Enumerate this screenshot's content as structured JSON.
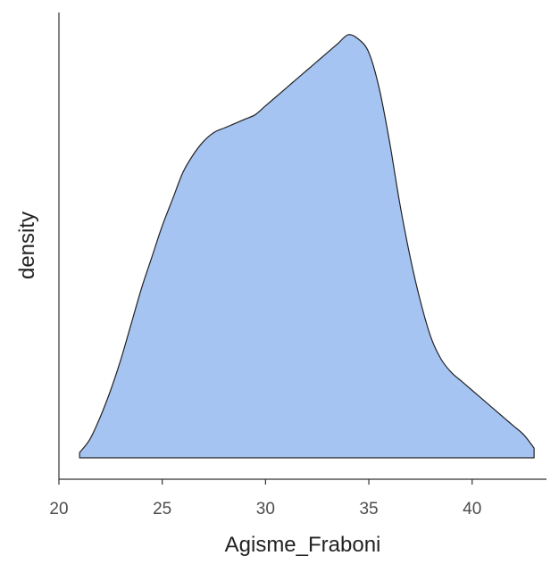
{
  "chart_data": {
    "type": "area",
    "title": "",
    "xlabel": "Agisme_Fraboni",
    "ylabel": "density",
    "xlim": [
      20,
      43.6
    ],
    "ylim": [
      0,
      1.05
    ],
    "x_ticks": [
      "20",
      "25",
      "30",
      "35",
      "40"
    ],
    "y_ticks": [],
    "grid": false,
    "legend": "none",
    "fill_color": "#a6c4f2",
    "stroke_color": "#222222",
    "series": [
      {
        "x": [
          21,
          21.5,
          22,
          22.5,
          23,
          23.5,
          24,
          24.5,
          25,
          25.5,
          26,
          26.5,
          27,
          27.5,
          28,
          28.5,
          29,
          29.5,
          30,
          30.5,
          31,
          31.5,
          32,
          32.5,
          33,
          33.5,
          34,
          34.5,
          35,
          35.5,
          36,
          36.5,
          37,
          37.5,
          38,
          38.5,
          39,
          39.5,
          40,
          40.5,
          41,
          41.5,
          42,
          42.5,
          43
        ],
        "values": [
          0.06,
          0.09,
          0.14,
          0.2,
          0.27,
          0.35,
          0.43,
          0.5,
          0.57,
          0.63,
          0.69,
          0.73,
          0.76,
          0.78,
          0.79,
          0.8,
          0.81,
          0.82,
          0.84,
          0.86,
          0.88,
          0.9,
          0.92,
          0.94,
          0.96,
          0.98,
          1.0,
          0.99,
          0.96,
          0.88,
          0.76,
          0.62,
          0.5,
          0.4,
          0.32,
          0.27,
          0.24,
          0.22,
          0.2,
          0.18,
          0.16,
          0.14,
          0.12,
          0.1,
          0.07
        ]
      }
    ]
  }
}
